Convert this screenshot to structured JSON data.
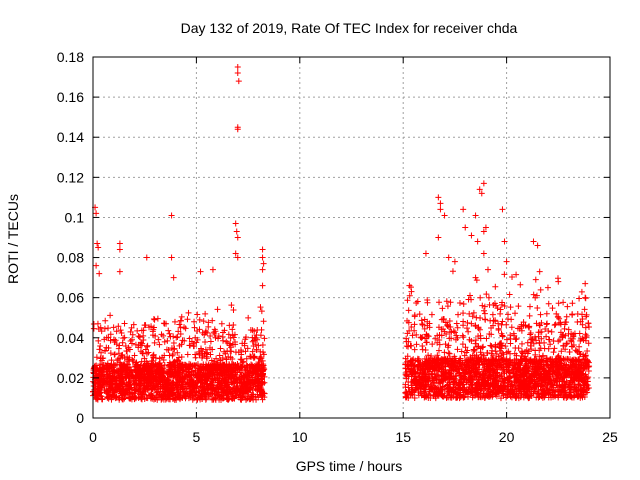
{
  "chart_data": {
    "type": "scatter",
    "title": "Day 132 of 2019, Rate Of TEC Index for receiver chda",
    "xlabel": "GPS time / hours",
    "ylabel": "ROTI / TECUs",
    "xlim": [
      0,
      25
    ],
    "ylim": [
      0,
      0.18
    ],
    "x_ticks": [
      0,
      5,
      10,
      15,
      20,
      25
    ],
    "x_tick_labels": [
      "0",
      "5",
      "10",
      "15",
      "20",
      "25"
    ],
    "y_ticks": [
      0,
      0.02,
      0.04,
      0.06,
      0.08,
      0.1,
      0.12,
      0.14,
      0.16,
      0.18
    ],
    "y_tick_labels": [
      "0",
      "0.02",
      "0.04",
      "0.06",
      "0.08",
      "0.1",
      "0.12",
      "0.14",
      "0.16",
      "0.18"
    ],
    "grid": true,
    "marker": "+",
    "color": "#ff0000",
    "series": [
      {
        "name": "ROTI",
        "segments": [
          {
            "x_start": 0.0,
            "x_end": 8.3,
            "baseline": 0.02,
            "typical_max": 0.05
          },
          {
            "x_start": 15.1,
            "x_end": 24.0,
            "baseline": 0.022,
            "typical_max": 0.06
          }
        ],
        "peaks": [
          {
            "x": 0.1,
            "y": 0.105
          },
          {
            "x": 0.15,
            "y": 0.102
          },
          {
            "x": 0.2,
            "y": 0.087
          },
          {
            "x": 0.25,
            "y": 0.085
          },
          {
            "x": 0.15,
            "y": 0.076
          },
          {
            "x": 0.3,
            "y": 0.072
          },
          {
            "x": 1.3,
            "y": 0.087
          },
          {
            "x": 1.3,
            "y": 0.084
          },
          {
            "x": 1.3,
            "y": 0.073
          },
          {
            "x": 2.6,
            "y": 0.08
          },
          {
            "x": 3.8,
            "y": 0.101
          },
          {
            "x": 3.8,
            "y": 0.08
          },
          {
            "x": 3.9,
            "y": 0.07
          },
          {
            "x": 5.2,
            "y": 0.073
          },
          {
            "x": 5.8,
            "y": 0.074
          },
          {
            "x": 7.0,
            "y": 0.175
          },
          {
            "x": 7.0,
            "y": 0.172
          },
          {
            "x": 7.05,
            "y": 0.168
          },
          {
            "x": 7.0,
            "y": 0.145
          },
          {
            "x": 7.0,
            "y": 0.144
          },
          {
            "x": 6.9,
            "y": 0.097
          },
          {
            "x": 6.95,
            "y": 0.093
          },
          {
            "x": 7.0,
            "y": 0.09
          },
          {
            "x": 6.9,
            "y": 0.082
          },
          {
            "x": 7.0,
            "y": 0.08
          },
          {
            "x": 8.2,
            "y": 0.084
          },
          {
            "x": 8.2,
            "y": 0.08
          },
          {
            "x": 8.25,
            "y": 0.077
          },
          {
            "x": 8.2,
            "y": 0.074
          },
          {
            "x": 8.2,
            "y": 0.066
          },
          {
            "x": 16.1,
            "y": 0.082
          },
          {
            "x": 16.7,
            "y": 0.11
          },
          {
            "x": 16.8,
            "y": 0.107
          },
          {
            "x": 16.8,
            "y": 0.104
          },
          {
            "x": 17.0,
            "y": 0.101
          },
          {
            "x": 16.7,
            "y": 0.09
          },
          {
            "x": 17.2,
            "y": 0.08
          },
          {
            "x": 17.9,
            "y": 0.104
          },
          {
            "x": 18.0,
            "y": 0.095
          },
          {
            "x": 18.3,
            "y": 0.091
          },
          {
            "x": 18.5,
            "y": 0.101
          },
          {
            "x": 18.7,
            "y": 0.114
          },
          {
            "x": 18.9,
            "y": 0.117
          },
          {
            "x": 18.8,
            "y": 0.112
          },
          {
            "x": 19.0,
            "y": 0.095
          },
          {
            "x": 18.9,
            "y": 0.093
          },
          {
            "x": 18.6,
            "y": 0.088
          },
          {
            "x": 18.9,
            "y": 0.082
          },
          {
            "x": 19.1,
            "y": 0.074
          },
          {
            "x": 18.5,
            "y": 0.07
          },
          {
            "x": 17.5,
            "y": 0.078
          },
          {
            "x": 19.8,
            "y": 0.104
          },
          {
            "x": 19.9,
            "y": 0.088
          },
          {
            "x": 20.0,
            "y": 0.078
          },
          {
            "x": 21.3,
            "y": 0.088
          },
          {
            "x": 21.5,
            "y": 0.086
          },
          {
            "x": 21.6,
            "y": 0.073
          },
          {
            "x": 22.0,
            "y": 0.065
          },
          {
            "x": 22.5,
            "y": 0.068
          },
          {
            "x": 23.8,
            "y": 0.067
          },
          {
            "x": 23.8,
            "y": 0.06
          },
          {
            "x": 15.3,
            "y": 0.066
          },
          {
            "x": 15.4,
            "y": 0.063
          }
        ]
      }
    ]
  }
}
